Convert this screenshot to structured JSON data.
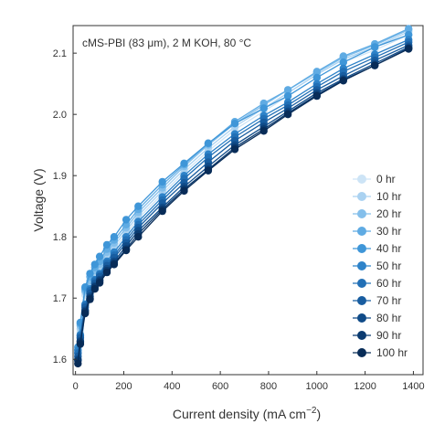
{
  "chart_data": {
    "type": "line",
    "annotation": "cMS-PBI (83 μm), 2 M KOH, 80 °C",
    "xlabel": "Current density (mA cm",
    "xlabel_sup": "−2",
    "xlabel_end": ")",
    "ylabel": "Voltage (V)",
    "xlim": [
      -10,
      1440
    ],
    "ylim": [
      1.575,
      2.145
    ],
    "xticks": [
      0,
      200,
      400,
      600,
      800,
      1000,
      1200,
      1400
    ],
    "yticks": [
      1.6,
      1.7,
      1.8,
      1.9,
      2.0,
      2.1
    ],
    "ytick_labels": [
      "1.6",
      "1.7",
      "1.8",
      "1.9",
      "2.0",
      "2.1"
    ],
    "legend_position": "right",
    "x": [
      10,
      20,
      40,
      60,
      80,
      100,
      130,
      160,
      210,
      260,
      360,
      450,
      550,
      660,
      780,
      880,
      1000,
      1110,
      1240,
      1380
    ],
    "series": [
      {
        "name": "0 hr",
        "color": "#cde4f6",
        "values": [
          1.6,
          1.645,
          1.705,
          1.72,
          1.735,
          1.745,
          1.765,
          1.78,
          1.805,
          1.83,
          1.87,
          1.905,
          1.94,
          1.975,
          2.005,
          2.03,
          2.06,
          2.085,
          2.105,
          2.13
        ]
      },
      {
        "name": "10 hr",
        "color": "#aad2f1",
        "values": [
          1.605,
          1.65,
          1.71,
          1.725,
          1.74,
          1.75,
          1.77,
          1.785,
          1.81,
          1.835,
          1.875,
          1.91,
          1.945,
          1.98,
          2.01,
          2.035,
          2.065,
          2.09,
          2.11,
          2.135
        ]
      },
      {
        "name": "20 hr",
        "color": "#84bfeb",
        "values": [
          1.61,
          1.655,
          1.712,
          1.728,
          1.745,
          1.755,
          1.775,
          1.79,
          1.815,
          1.84,
          1.88,
          1.915,
          1.95,
          1.985,
          2.015,
          2.04,
          2.068,
          2.093,
          2.113,
          2.138
        ]
      },
      {
        "name": "30 hr",
        "color": "#5fabe3",
        "values": [
          1.615,
          1.658,
          1.715,
          1.735,
          1.75,
          1.76,
          1.78,
          1.795,
          1.82,
          1.845,
          1.885,
          1.918,
          1.952,
          1.988,
          2.018,
          2.04,
          2.07,
          2.095,
          2.115,
          2.14
        ]
      },
      {
        "name": "40 hr",
        "color": "#3f96d8",
        "values": [
          1.62,
          1.66,
          1.718,
          1.74,
          1.755,
          1.768,
          1.787,
          1.8,
          1.828,
          1.85,
          1.89,
          1.92,
          1.953,
          1.985,
          2.01,
          2.03,
          2.06,
          2.085,
          2.11,
          2.13
        ]
      },
      {
        "name": "50 hr",
        "color": "#2e83c9",
        "values": [
          1.615,
          1.64,
          1.69,
          1.715,
          1.73,
          1.74,
          1.76,
          1.775,
          1.8,
          1.825,
          1.865,
          1.9,
          1.935,
          1.968,
          1.998,
          2.02,
          2.05,
          2.075,
          2.098,
          2.122
        ]
      },
      {
        "name": "60 hr",
        "color": "#2270b6",
        "values": [
          1.61,
          1.638,
          1.688,
          1.712,
          1.728,
          1.738,
          1.757,
          1.77,
          1.795,
          1.82,
          1.86,
          1.895,
          1.93,
          1.963,
          1.993,
          2.015,
          2.045,
          2.07,
          2.093,
          2.118
        ]
      },
      {
        "name": "70 hr",
        "color": "#185da0",
        "values": [
          1.605,
          1.635,
          1.685,
          1.708,
          1.724,
          1.735,
          1.753,
          1.766,
          1.79,
          1.815,
          1.855,
          1.888,
          1.922,
          1.957,
          1.987,
          2.01,
          2.04,
          2.063,
          2.088,
          2.113
        ]
      },
      {
        "name": "80 hr",
        "color": "#104b88",
        "values": [
          1.6,
          1.63,
          1.68,
          1.703,
          1.72,
          1.73,
          1.748,
          1.76,
          1.785,
          1.81,
          1.848,
          1.882,
          1.915,
          1.95,
          1.98,
          2.005,
          2.035,
          2.058,
          2.083,
          2.11
        ]
      },
      {
        "name": "90 hr",
        "color": "#0b3b70",
        "values": [
          1.598,
          1.628,
          1.678,
          1.7,
          1.718,
          1.728,
          1.745,
          1.757,
          1.78,
          1.805,
          1.845,
          1.878,
          1.91,
          1.946,
          1.976,
          2.002,
          2.032,
          2.056,
          2.08,
          2.108
        ]
      },
      {
        "name": "100 hr",
        "color": "#082c58",
        "values": [
          1.593,
          1.625,
          1.675,
          1.698,
          1.715,
          1.725,
          1.742,
          1.755,
          1.778,
          1.8,
          1.842,
          1.875,
          1.908,
          1.943,
          1.973,
          2.0,
          2.03,
          2.055,
          2.08,
          2.107
        ]
      }
    ]
  }
}
